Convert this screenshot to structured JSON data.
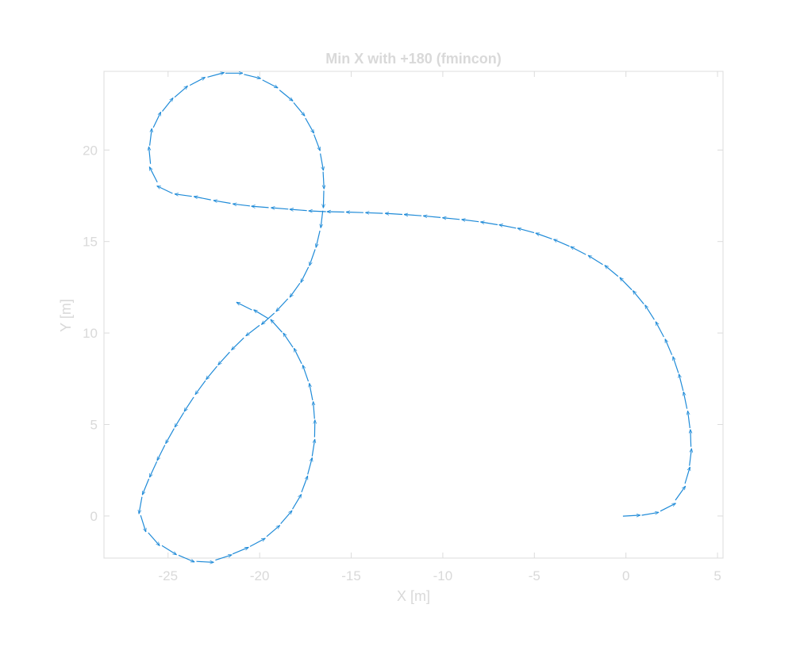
{
  "chart_data": {
    "type": "quiver",
    "title": "Min X with +180 (fmincon)",
    "xlabel": "X [m]",
    "ylabel": "Y [m]",
    "xlim": [
      -28.5,
      5.3
    ],
    "ylim": [
      -2.3,
      24.3
    ],
    "xticks": [
      -25,
      -20,
      -15,
      -10,
      -5,
      0,
      5
    ],
    "yticks": [
      0,
      5,
      10,
      15,
      20
    ],
    "colors": {
      "arrow": "#1f8bd8",
      "axis": "#dcdcdc",
      "text": "#d9d9d9"
    },
    "path": [
      [
        0.0,
        0.0
      ],
      [
        1.2,
        0.1
      ],
      [
        2.3,
        0.5
      ],
      [
        3.1,
        1.5
      ],
      [
        3.5,
        3.0
      ],
      [
        3.5,
        4.7
      ],
      [
        3.2,
        6.5
      ],
      [
        2.7,
        8.3
      ],
      [
        1.9,
        10.1
      ],
      [
        0.8,
        11.8
      ],
      [
        -0.8,
        13.4
      ],
      [
        -2.8,
        14.6
      ],
      [
        -5.1,
        15.5
      ],
      [
        -7.5,
        16.0
      ],
      [
        -10.0,
        16.3
      ],
      [
        -12.5,
        16.5
      ],
      [
        -15.0,
        16.6
      ],
      [
        -16.8,
        16.65
      ],
      [
        -18.8,
        16.8
      ],
      [
        -21.0,
        17.0
      ],
      [
        -23.3,
        17.4
      ],
      [
        -25.1,
        17.8
      ],
      [
        -25.9,
        19.0
      ],
      [
        -25.9,
        20.9
      ],
      [
        -25.0,
        22.5
      ],
      [
        -23.5,
        23.7
      ],
      [
        -21.6,
        24.2
      ],
      [
        -19.6,
        23.7
      ],
      [
        -17.9,
        22.3
      ],
      [
        -16.8,
        20.2
      ],
      [
        -16.5,
        17.8
      ],
      [
        -16.8,
        15.2
      ],
      [
        -17.7,
        12.9
      ],
      [
        -19.2,
        11.1
      ],
      [
        -21.0,
        9.6
      ],
      [
        -22.8,
        7.6
      ],
      [
        -24.3,
        5.4
      ],
      [
        -25.6,
        3.0
      ],
      [
        -26.5,
        0.6
      ],
      [
        -26.0,
        -1.0
      ],
      [
        -24.5,
        -2.1
      ],
      [
        -23.0,
        -2.5
      ],
      [
        -21.3,
        -2.0
      ],
      [
        -19.6,
        -1.1
      ],
      [
        -18.2,
        0.4
      ],
      [
        -17.4,
        2.2
      ],
      [
        -17.0,
        4.4
      ],
      [
        -17.2,
        6.8
      ],
      [
        -18.0,
        8.9
      ],
      [
        -19.3,
        10.6
      ],
      [
        -20.7,
        11.4
      ]
    ]
  }
}
